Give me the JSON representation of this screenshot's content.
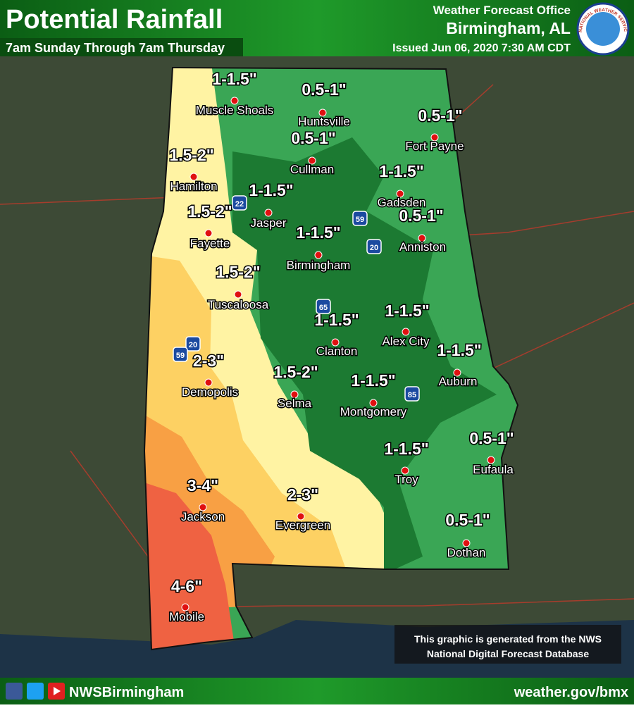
{
  "header": {
    "title": "Potential Rainfall",
    "subtitle": "7am Sunday Through 7am Thursday",
    "office": "Weather Forecast Office",
    "location": "Birmingham, AL",
    "issued": "Issued Jun 06, 2020 7:30 AM CDT",
    "logo_text": "NATIONAL WEATHER SERVICE"
  },
  "cities": [
    {
      "name": "Muscle Shoals",
      "rainfall": "1-1.5\""
    },
    {
      "name": "Huntsville",
      "rainfall": "0.5-1\""
    },
    {
      "name": "Fort Payne",
      "rainfall": "0.5-1\""
    },
    {
      "name": "Cullman",
      "rainfall": "0.5-1\""
    },
    {
      "name": "Hamilton",
      "rainfall": "1.5-2\""
    },
    {
      "name": "Gadsden",
      "rainfall": "1-1.5\""
    },
    {
      "name": "Jasper",
      "rainfall": "1-1.5\""
    },
    {
      "name": "Fayette",
      "rainfall": "1.5-2\""
    },
    {
      "name": "Anniston",
      "rainfall": "0.5-1\""
    },
    {
      "name": "Birmingham",
      "rainfall": "1-1.5\""
    },
    {
      "name": "Tuscaloosa",
      "rainfall": "1.5-2\""
    },
    {
      "name": "Alex City",
      "rainfall": "1-1.5\""
    },
    {
      "name": "Clanton",
      "rainfall": "1-1.5\""
    },
    {
      "name": "Auburn",
      "rainfall": "1-1.5\""
    },
    {
      "name": "Demopolis",
      "rainfall": "2-3\""
    },
    {
      "name": "Selma",
      "rainfall": "1.5-2\""
    },
    {
      "name": "Montgomery",
      "rainfall": "1-1.5\""
    },
    {
      "name": "Eufaula",
      "rainfall": "0.5-1\""
    },
    {
      "name": "Troy",
      "rainfall": "1-1.5\""
    },
    {
      "name": "Jackson",
      "rainfall": "3-4\""
    },
    {
      "name": "Evergreen",
      "rainfall": "2-3\""
    },
    {
      "name": "Dothan",
      "rainfall": "0.5-1\""
    },
    {
      "name": "Mobile",
      "rainfall": "4-6\""
    }
  ],
  "interstates": [
    "22",
    "59",
    "20",
    "65",
    "85",
    "20",
    "59"
  ],
  "note": {
    "line1": "This graphic is generated from the NWS",
    "line2": "National Digital Forecast Database"
  },
  "footer": {
    "handle": "NWSBirmingham",
    "url": "weather.gov/bmx"
  }
}
